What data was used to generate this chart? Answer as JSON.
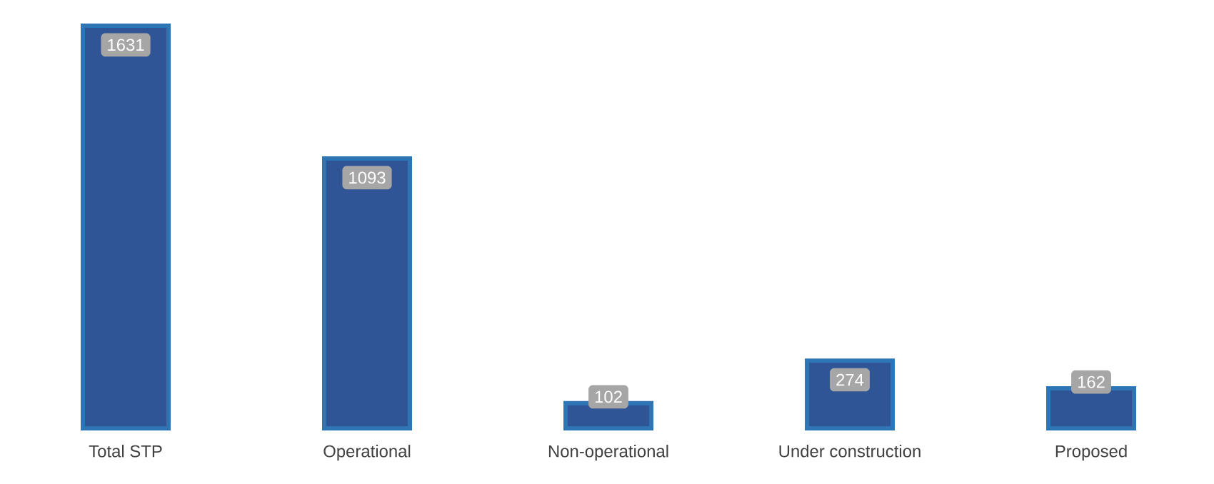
{
  "chart_data": {
    "type": "bar",
    "categories": [
      "Total STP",
      "Operational",
      "Non-operational",
      "Under construction",
      "Proposed"
    ],
    "values": [
      1631,
      1093,
      102,
      274,
      162
    ],
    "color": "#2f5597",
    "data_labels": true
  }
}
